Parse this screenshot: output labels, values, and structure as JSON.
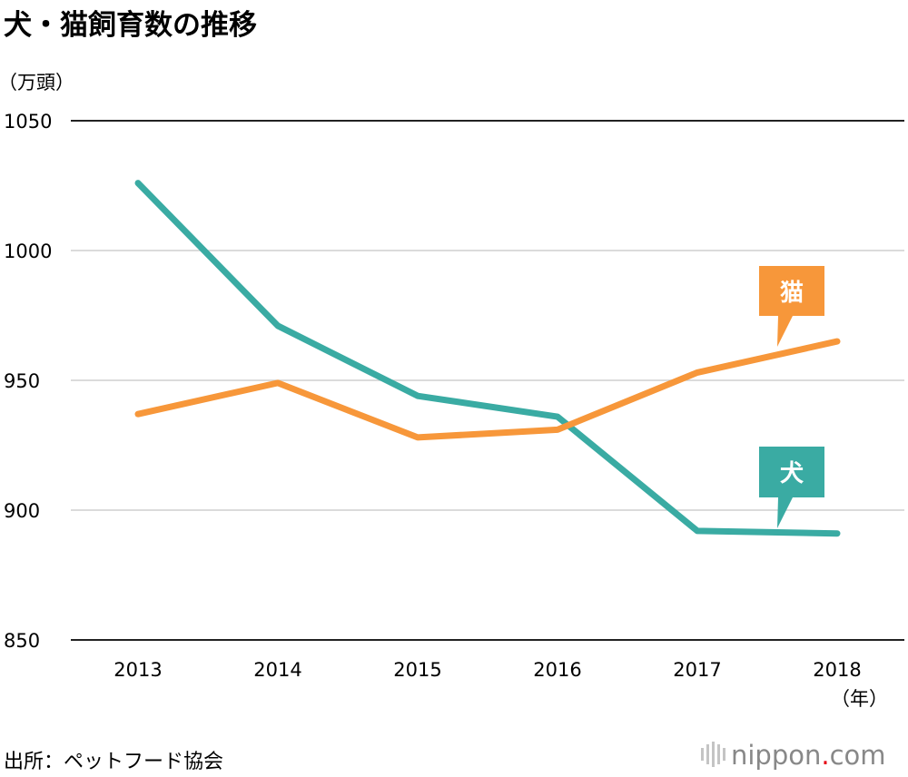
{
  "chart_data": {
    "type": "line",
    "title": "犬・猫飼育数の推移",
    "ylabel": "（万頭）",
    "xlabel": "（年）",
    "ylim": [
      850,
      1050
    ],
    "yticks": [
      1050,
      1000,
      950,
      900,
      850
    ],
    "categories": [
      "2013",
      "2014",
      "2015",
      "2016",
      "2017",
      "2018"
    ],
    "series": [
      {
        "name": "犬",
        "color": "#3aaba3",
        "values": [
          1026,
          971,
          944,
          936,
          892,
          891
        ]
      },
      {
        "name": "猫",
        "color": "#f7973a",
        "values": [
          937,
          949,
          928,
          931,
          953,
          965
        ]
      }
    ]
  },
  "source": "出所：ペットフード協会",
  "logo": {
    "name": "nippon",
    "dot": ".",
    "domain": "com",
    "dot_color": "#e60012"
  }
}
